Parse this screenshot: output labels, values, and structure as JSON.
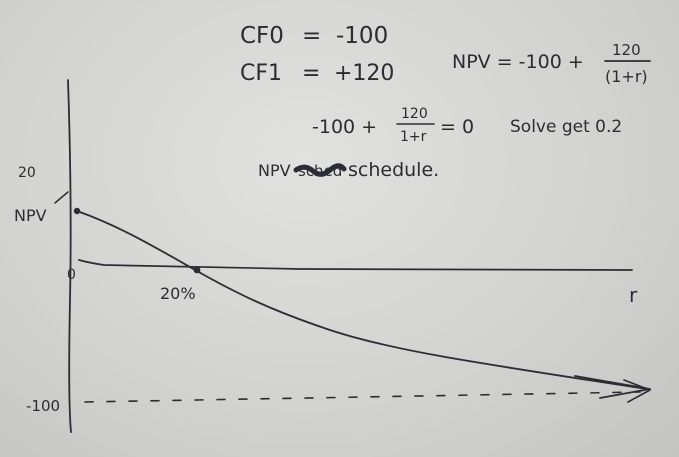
{
  "notes": {
    "cf0": "CF0",
    "eq0": "=",
    "cf0_value": "-100",
    "cf1": "CF1",
    "eq1": "=",
    "cf1_value": "+120",
    "npv_formula": {
      "lhs": "NPV = -100 +",
      "numerator": "120",
      "denominator": "(1+r)"
    },
    "solve_equation": {
      "lhs": "-100 +",
      "numerator": "120",
      "denominator": "1+r",
      "rhs": "= 0"
    },
    "solve_note": "Solve get 0.2",
    "schedule_label": "NPV",
    "schedule_scratch": "sched",
    "schedule_word": "schedule."
  },
  "graph": {
    "y_tick_top": "20",
    "y_axis_label": "NPV",
    "origin_label": "0",
    "irr_label": "20%",
    "x_axis_label": "r",
    "y_tick_bottom": "-100"
  },
  "colors": {
    "ink": "#2c2c34",
    "paper": "#d3d3d1"
  }
}
